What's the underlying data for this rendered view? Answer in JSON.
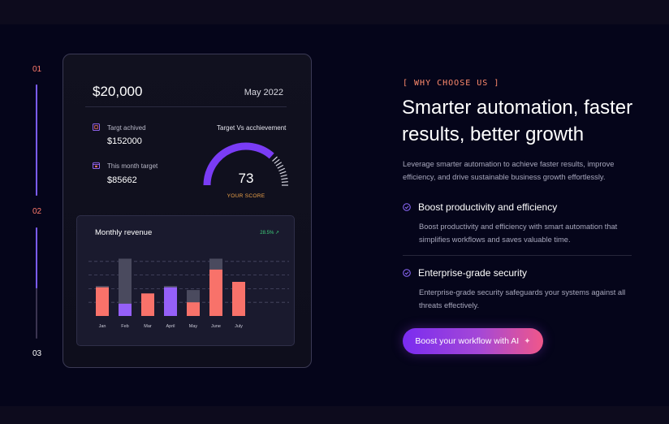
{
  "stepper": [
    {
      "label": "01",
      "color": "#ff7a6c"
    },
    {
      "label": "02",
      "color": "#ff7a6c"
    },
    {
      "label": "03",
      "color": "#ffffff"
    }
  ],
  "dashboard": {
    "amount": "$20,000",
    "date": "May 2022",
    "stats": [
      {
        "label": "Targt achived",
        "value": "$152000",
        "icon": "target-icon"
      },
      {
        "label": "This month target",
        "value": "$85662",
        "icon": "calendar-icon"
      }
    ],
    "gauge": {
      "title": "Target Vs acchievement",
      "score": "73",
      "score_label": "YOUR SCORE",
      "score_fraction": 0.73
    },
    "revenue": {
      "title": "Monthly revenue",
      "change": "28.5% ↗"
    }
  },
  "chart_data": {
    "type": "bar",
    "title": "Monthly revenue",
    "categories": [
      "Jan",
      "Feb",
      "Mar",
      "April",
      "May",
      "June",
      "July"
    ],
    "series": [
      {
        "values": [
          44,
          84,
          33,
          44,
          38,
          84,
          12
        ],
        "color": "#4a4a5e"
      },
      {
        "values": [
          42,
          0,
          33,
          0,
          20,
          0,
          0
        ],
        "color": "#f8726a"
      },
      {
        "values": [
          0,
          18,
          0,
          42,
          0,
          18,
          42
        ],
        "color": "#9560f8"
      },
      {
        "values": [
          0,
          0,
          0,
          0,
          0,
          68,
          0
        ],
        "color": "#f8726a"
      },
      {
        "values": [
          0,
          0,
          0,
          0,
          0,
          0,
          50
        ],
        "color": "#f8726a"
      }
    ],
    "ylim": [
      0,
      100
    ],
    "grid": true
  },
  "content": {
    "eyebrow": "[ WHY CHOOSE US ]",
    "headline": "Smarter automation, faster results, better growth",
    "lead": "Leverage smarter automation to achieve faster results, improve efficiency, and drive sustainable business growth effortlessly.",
    "features": [
      {
        "title": "Boost productivity and efficiency",
        "desc": "Boost productivity and efficiency with smart automation that simplifies workflows and saves valuable time.",
        "icon": "check-circle-icon"
      },
      {
        "title": "Enterprise-grade security",
        "desc": "Enterprise-grade security safeguards your systems against all threats effectively.",
        "icon": "check-circle-icon"
      }
    ],
    "cta": "Boost your workflow with AI",
    "cta_icon": "sparkle-icon"
  },
  "colors": {
    "accent": "#7b5cff",
    "coral": "#f8726a",
    "purple": "#9560f8",
    "background": "#05051a"
  }
}
